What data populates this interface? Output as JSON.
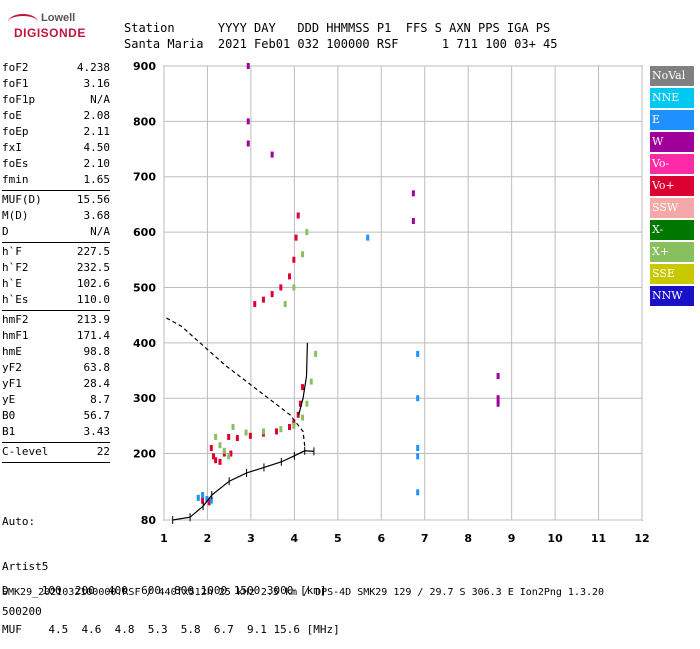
{
  "logo": {
    "top": "Lowell",
    "bottom": "DIGISONDE"
  },
  "header": {
    "line1": "Station      YYYY DAY   DDD HHMMSS P1  FFS S AXN PPS IGA PS",
    "line2": "Santa Maria  2021 Feb01 032 100000 RSF      1 711 100 03+ 45"
  },
  "params": [
    {
      "group": [
        {
          "name": "foF2",
          "value": "4.238"
        },
        {
          "name": "foF1",
          "value": "3.16"
        },
        {
          "name": "foF1p",
          "value": "N/A"
        },
        {
          "name": "foE",
          "value": "2.08"
        },
        {
          "name": "foEp",
          "value": "2.11"
        },
        {
          "name": "fxI",
          "value": "4.50"
        },
        {
          "name": "foEs",
          "value": "2.10"
        },
        {
          "name": "fmin",
          "value": "1.65"
        }
      ]
    },
    {
      "group": [
        {
          "name": "MUF(D)",
          "value": "15.56"
        },
        {
          "name": "M(D)",
          "value": "3.68"
        },
        {
          "name": "D",
          "value": "N/A"
        }
      ]
    },
    {
      "group": [
        {
          "name": "h`F",
          "value": "227.5"
        },
        {
          "name": "h`F2",
          "value": "232.5"
        },
        {
          "name": "h`E",
          "value": "102.6"
        },
        {
          "name": "h`Es",
          "value": "110.0"
        }
      ]
    },
    {
      "group": [
        {
          "name": "hmF2",
          "value": "213.9"
        },
        {
          "name": "hmF1",
          "value": "171.4"
        },
        {
          "name": "hmE",
          "value": "98.8"
        },
        {
          "name": "yF2",
          "value": "63.8"
        },
        {
          "name": "yF1",
          "value": "28.4"
        },
        {
          "name": "yE",
          "value": "8.7"
        },
        {
          "name": "B0",
          "value": "56.7"
        },
        {
          "name": "B1",
          "value": "3.43"
        }
      ]
    },
    {
      "group": [
        {
          "name": "C-level",
          "value": "22"
        }
      ]
    }
  ],
  "auto": {
    "line1": "Auto:",
    "line2": "Artist5",
    "line3": "500200"
  },
  "legend": [
    {
      "label": "NoVal",
      "color": "#808080"
    },
    {
      "label": "NNE",
      "color": "#00c8f0"
    },
    {
      "label": "E",
      "color": "#1e90ff"
    },
    {
      "label": "W",
      "color": "#a0009a"
    },
    {
      "label": "Vo-",
      "color": "#ff2aa8"
    },
    {
      "label": "Vo+",
      "color": "#dc0030"
    },
    {
      "label": "SSW",
      "color": "#f4a8a8"
    },
    {
      "label": "X-",
      "color": "#007800"
    },
    {
      "label": "X+",
      "color": "#88c060"
    },
    {
      "label": "SSE",
      "color": "#c8c800"
    },
    {
      "label": "NNW",
      "color": "#1a10c8"
    }
  ],
  "footer": {
    "d_line": "D     100  200  400  600  800 1000 1500 3000 [km]",
    "muf_line": "MUF    4.5  4.6  4.8  5.3  5.8  6.7  9.1 15.6 [MHz]",
    "info_line": "SMK29_2021032100000.RSF / 440fx512h 25 kHz 2.5 km / DPS-4D SMK29 129 / 29.7 S 306.3 E Ion2Png 1.3.20"
  },
  "chart_data": {
    "type": "scatter",
    "xlim": [
      1,
      12
    ],
    "ylim": [
      80,
      900
    ],
    "xticks": [
      "1",
      "2",
      "3",
      "4",
      "5",
      "6",
      "7",
      "8",
      "9",
      "10",
      "11",
      "12"
    ],
    "yticks": [
      "80",
      "200",
      "300",
      "400",
      "500",
      "600",
      "700",
      "800",
      "900"
    ],
    "grid": true,
    "xlabel": "",
    "ylabel": "",
    "series": [
      {
        "color": "#dc0030",
        "values": [
          [
            2.1,
            210
          ],
          [
            2.15,
            195
          ],
          [
            2.2,
            188
          ],
          [
            2.3,
            185
          ],
          [
            2.4,
            200
          ],
          [
            2.5,
            230
          ],
          [
            2.7,
            228
          ],
          [
            3.0,
            232
          ],
          [
            3.3,
            236
          ],
          [
            3.6,
            240
          ],
          [
            3.9,
            248
          ],
          [
            4.0,
            256
          ],
          [
            4.1,
            270
          ],
          [
            4.15,
            290
          ],
          [
            4.2,
            320
          ],
          [
            3.1,
            470
          ],
          [
            3.3,
            478
          ],
          [
            3.5,
            488
          ],
          [
            3.7,
            500
          ],
          [
            3.9,
            520
          ],
          [
            4.0,
            550
          ],
          [
            4.05,
            590
          ],
          [
            4.1,
            630
          ],
          [
            2.55,
            200
          ],
          [
            1.9,
            115
          ],
          [
            2.05,
            112
          ]
        ]
      },
      {
        "color": "#88c060",
        "values": [
          [
            2.2,
            230
          ],
          [
            2.3,
            215
          ],
          [
            2.4,
            205
          ],
          [
            2.5,
            195
          ],
          [
            2.6,
            248
          ],
          [
            2.9,
            238
          ],
          [
            3.3,
            240
          ],
          [
            3.7,
            244
          ],
          [
            4.0,
            250
          ],
          [
            4.2,
            265
          ],
          [
            4.3,
            290
          ],
          [
            4.4,
            330
          ],
          [
            4.5,
            380
          ],
          [
            3.8,
            470
          ],
          [
            4.0,
            500
          ],
          [
            4.2,
            560
          ],
          [
            4.3,
            600
          ]
        ]
      },
      {
        "color": "#a0009a",
        "values": [
          [
            2.95,
            900
          ],
          [
            2.95,
            800
          ],
          [
            2.95,
            760
          ],
          [
            3.5,
            740
          ],
          [
            6.75,
            670
          ],
          [
            6.75,
            620
          ],
          [
            8.7,
            340
          ],
          [
            8.7,
            300
          ],
          [
            8.7,
            290
          ]
        ]
      },
      {
        "color": "#1e90ff",
        "values": [
          [
            1.8,
            120
          ],
          [
            1.9,
            125
          ],
          [
            2.0,
            118
          ],
          [
            2.1,
            115
          ],
          [
            5.7,
            590
          ],
          [
            6.85,
            380
          ],
          [
            6.85,
            300
          ],
          [
            6.85,
            210
          ],
          [
            6.85,
            195
          ],
          [
            6.85,
            130
          ]
        ]
      }
    ],
    "profile": [
      [
        4.238,
        213.9
      ],
      [
        4.2,
        240
      ],
      [
        3.9,
        270
      ],
      [
        3.4,
        300
      ],
      [
        2.9,
        330
      ],
      [
        2.4,
        360
      ],
      [
        1.9,
        395
      ],
      [
        1.4,
        430
      ],
      [
        1.05,
        445
      ]
    ],
    "trace": [
      [
        1.2,
        80
      ],
      [
        1.6,
        85
      ],
      [
        1.9,
        105
      ],
      [
        2.1,
        125
      ],
      [
        2.5,
        150
      ],
      [
        2.9,
        165
      ],
      [
        3.3,
        175
      ],
      [
        3.7,
        185
      ],
      [
        4.0,
        196
      ],
      [
        4.238,
        205
      ],
      [
        4.45,
        204
      ]
    ],
    "trace_upper": [
      [
        4.1,
        270
      ],
      [
        4.2,
        300
      ],
      [
        4.28,
        340
      ],
      [
        4.3,
        400
      ]
    ]
  }
}
